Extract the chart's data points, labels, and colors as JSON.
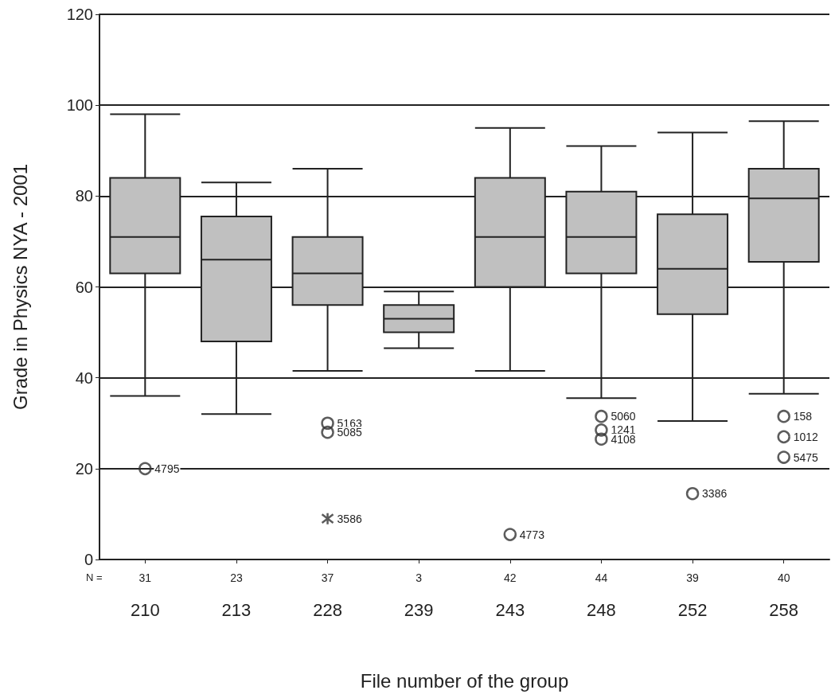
{
  "chart_data": {
    "type": "box",
    "ylabel": "Grade in Physics NYA - 2001",
    "xlabel": "File number of the group",
    "categories": [
      "210",
      "213",
      "228",
      "239",
      "243",
      "248",
      "252",
      "258"
    ],
    "ylim": [
      0,
      120
    ],
    "yticks": [
      0,
      20,
      40,
      60,
      80,
      100,
      120
    ],
    "grid": "y",
    "series": [
      {
        "color": "#c0c0c0",
        "boxes": [
          {
            "low": 36,
            "q1": 63,
            "median": 71,
            "q3": 84,
            "high": 98
          },
          {
            "low": 32,
            "q1": 48,
            "median": 66,
            "q3": 75.5,
            "high": 83
          },
          {
            "low": 41.5,
            "q1": 56,
            "median": 63,
            "q3": 71,
            "high": 86
          },
          {
            "low": 46.5,
            "q1": 50,
            "median": 53,
            "q3": 56,
            "high": 59
          },
          {
            "low": 41.5,
            "q1": 60,
            "median": 71,
            "q3": 84,
            "high": 95
          },
          {
            "low": 35.5,
            "q1": 63,
            "median": 71,
            "q3": 81,
            "high": 91
          },
          {
            "low": 30.5,
            "q1": 54,
            "median": 64,
            "q3": 76,
            "high": 94
          },
          {
            "low": 36.5,
            "q1": 65.5,
            "median": 79.5,
            "q3": 86,
            "high": 96.5
          }
        ]
      },
      {
        "type": "scatter",
        "marker": "circle",
        "color": "#333333",
        "x": [
          "210",
          "228",
          "228",
          "243",
          "248",
          "248",
          "248",
          "252",
          "258",
          "258",
          "258"
        ],
        "values": [
          20,
          30,
          28,
          5.5,
          31.5,
          28.5,
          26.5,
          14.5,
          31.5,
          27,
          22.5
        ]
      },
      {
        "type": "scatter",
        "marker": "cross",
        "color": "#333333",
        "x": [
          "228"
        ],
        "values": [
          9
        ]
      }
    ],
    "annotations": [
      "N =",
      "31",
      "23",
      "37",
      "3",
      "42",
      "44",
      "39",
      "40",
      {
        "text": "4795",
        "x": "210",
        "y": 20
      },
      {
        "text": "5163",
        "x": "228",
        "y": 30
      },
      {
        "text": "5085",
        "x": "228",
        "y": 28
      },
      {
        "text": "3586",
        "x": "228",
        "y": 9
      },
      {
        "text": "4773",
        "x": "243",
        "y": 5.5
      },
      {
        "text": "5060",
        "x": "248",
        "y": 31.5
      },
      {
        "text": "1241",
        "x": "248",
        "y": 28.5
      },
      {
        "text": "4108",
        "x": "248",
        "y": 26.5
      },
      {
        "text": "3386",
        "x": "252",
        "y": 14.5
      },
      {
        "text": "158",
        "x": "258",
        "y": 31.5
      },
      {
        "text": "1012",
        "x": "258",
        "y": 27
      },
      {
        "text": "5475",
        "x": "258",
        "y": 22.5
      }
    ]
  }
}
